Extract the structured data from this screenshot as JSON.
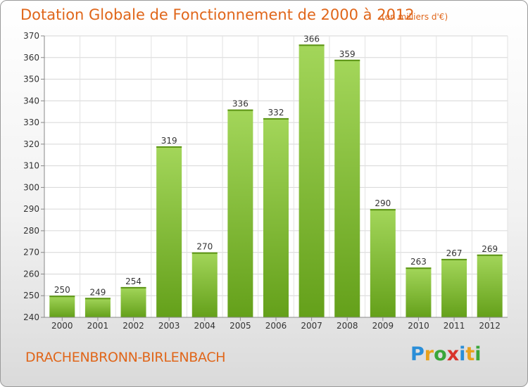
{
  "chart_data": {
    "type": "bar",
    "title": "Dotation Globale de Fonctionnement de 2000 à 2012",
    "unit_label": "(en milliers d'€)",
    "categories": [
      "2000",
      "2001",
      "2002",
      "2003",
      "2004",
      "2005",
      "2006",
      "2007",
      "2008",
      "2009",
      "2010",
      "2011",
      "2012"
    ],
    "values": [
      250,
      249,
      254,
      319,
      270,
      336,
      332,
      366,
      359,
      290,
      263,
      267,
      269
    ],
    "ylim": [
      240,
      370
    ],
    "yticks": [
      240,
      250,
      260,
      270,
      280,
      290,
      300,
      310,
      320,
      330,
      340,
      350,
      360,
      370
    ],
    "grid": true,
    "bar_color": "#7fbf2a",
    "xlabel": "",
    "ylabel": ""
  },
  "commune_name": "DRACHENBRONN-BIRLENBACH",
  "logo": {
    "letters": [
      "P",
      "r",
      "o",
      "x",
      "i",
      "t",
      "i"
    ],
    "colors": [
      "#2a8ed8",
      "#e8a11c",
      "#3aa63a",
      "#d9342b",
      "#2a8ed8",
      "#e8a11c",
      "#3aa63a"
    ]
  }
}
